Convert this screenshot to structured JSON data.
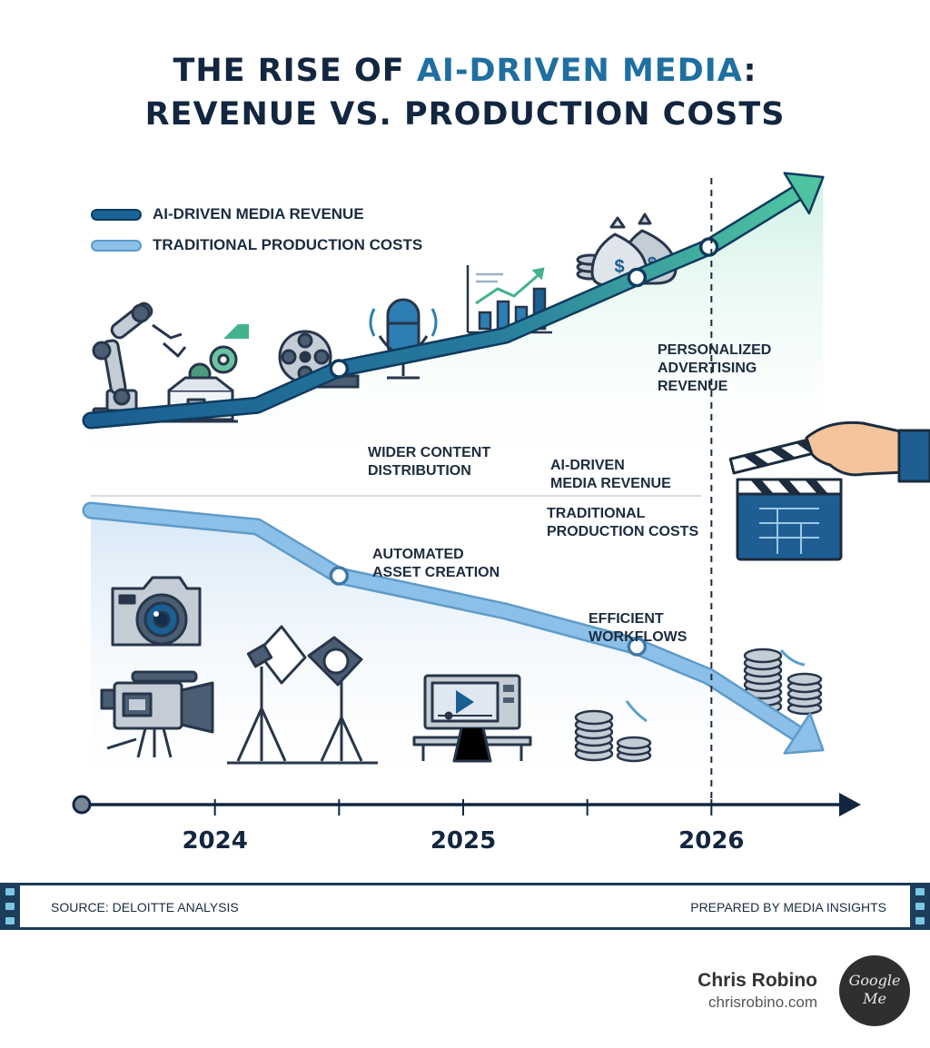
{
  "title": {
    "line1_pre": "THE RISE OF ",
    "line1_accent": "AI-DRIVEN MEDIA",
    "line1_post": ":",
    "line2": "REVENUE VS. PRODUCTION COSTS"
  },
  "chart_data": {
    "type": "line",
    "x": [
      2023.5,
      2024.17,
      2024.5,
      2025.17,
      2025.7,
      2025.99,
      2026.45
    ],
    "x_ticks": [
      "2024",
      "2025",
      "2026"
    ],
    "xlim": [
      2023.5,
      2026.5
    ],
    "ylim": [
      0,
      100
    ],
    "series": [
      {
        "name": "AI-DRIVEN MEDIA REVENUE",
        "color": "#1a6496",
        "color_end": "#4fc3a1",
        "values": [
          20,
          25,
          37,
          48,
          67,
          77,
          100
        ],
        "markers": [
          2,
          4,
          5
        ]
      },
      {
        "name": "TRADITIONAL PRODUCTION COSTS",
        "color": "#8dc0e8",
        "values": [
          98,
          92,
          74,
          61,
          48,
          37,
          10
        ],
        "markers": [
          2,
          4
        ]
      }
    ],
    "vline_x": 2026,
    "annotations": [
      {
        "text_lines": [
          "PERSONALIZED",
          "ADVERTISING",
          "REVENUE"
        ]
      },
      {
        "text_lines": [
          "WIDER CONTENT",
          "DISTRIBUTION"
        ]
      },
      {
        "text_lines": [
          "AI-DRIVEN",
          "MEDIA REVENUE"
        ]
      },
      {
        "text_lines": [
          "TRADITIONAL",
          "PRODUCTION COSTS"
        ]
      },
      {
        "text_lines": [
          "AUTOMATED",
          "ASSET CREATION"
        ]
      },
      {
        "text_lines": [
          "EFFICIENT",
          "WORKFLOWS"
        ]
      }
    ],
    "legend_position": "top-left"
  },
  "footer": {
    "source": "SOURCE: DELOITTE ANALYSIS",
    "prepared": "PREPARED BY MEDIA INSIGHTS"
  },
  "author": {
    "name": "Chris Robino",
    "url": "chrisrobino.com",
    "badge_line1": "Google",
    "badge_line2": "Me"
  },
  "colors": {
    "navy": "#12263f",
    "revenue": "#1a6496",
    "revenue_end": "#4fc3a1",
    "costs": "#8dc0e8"
  },
  "icons": [
    "robot-arm-icon",
    "gear-box-icon",
    "film-reel-icon",
    "microphone-icon",
    "bar-chart-icon",
    "money-bags-icon",
    "clapperboard-icon",
    "dslr-camera-icon",
    "video-camera-icon",
    "studio-lights-icon",
    "computer-monitor-icon",
    "coin-stacks-icon"
  ]
}
